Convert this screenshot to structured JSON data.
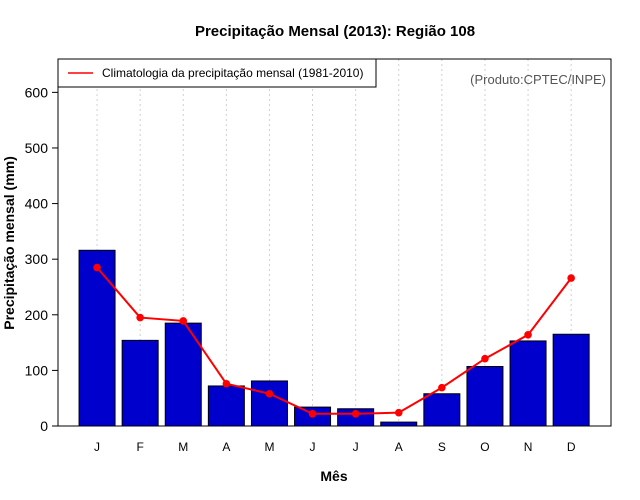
{
  "chart_data": {
    "type": "bar",
    "title": "Precipitação Mensal (2013): Região 108",
    "xlabel": "Mês",
    "ylabel": "Precipitação mensal (mm)",
    "categories": [
      "J",
      "F",
      "M",
      "A",
      "M",
      "J",
      "J",
      "A",
      "S",
      "O",
      "N",
      "D"
    ],
    "ylim": [
      0,
      660
    ],
    "yticks": [
      0,
      100,
      200,
      300,
      400,
      500,
      600
    ],
    "series": [
      {
        "name": "Precipitação mensal (2013)",
        "type": "bar",
        "color": "#0000CD",
        "values": [
          316,
          154,
          185,
          72,
          81,
          34,
          31,
          7,
          58,
          107,
          153,
          165
        ]
      },
      {
        "name": "Climatologia da precipitação mensal (1981-2010)",
        "type": "line",
        "color": "#FF0000",
        "values": [
          285,
          195,
          189,
          76,
          58,
          22,
          22,
          24,
          69,
          121,
          164,
          266
        ]
      }
    ],
    "legend": {
      "position": "top-left",
      "entries": [
        "Climatologia da precipitação mensal (1981-2010)"
      ]
    },
    "source": "(Produto:CPTEC/INPE)",
    "grid": "vertical-dashed"
  }
}
